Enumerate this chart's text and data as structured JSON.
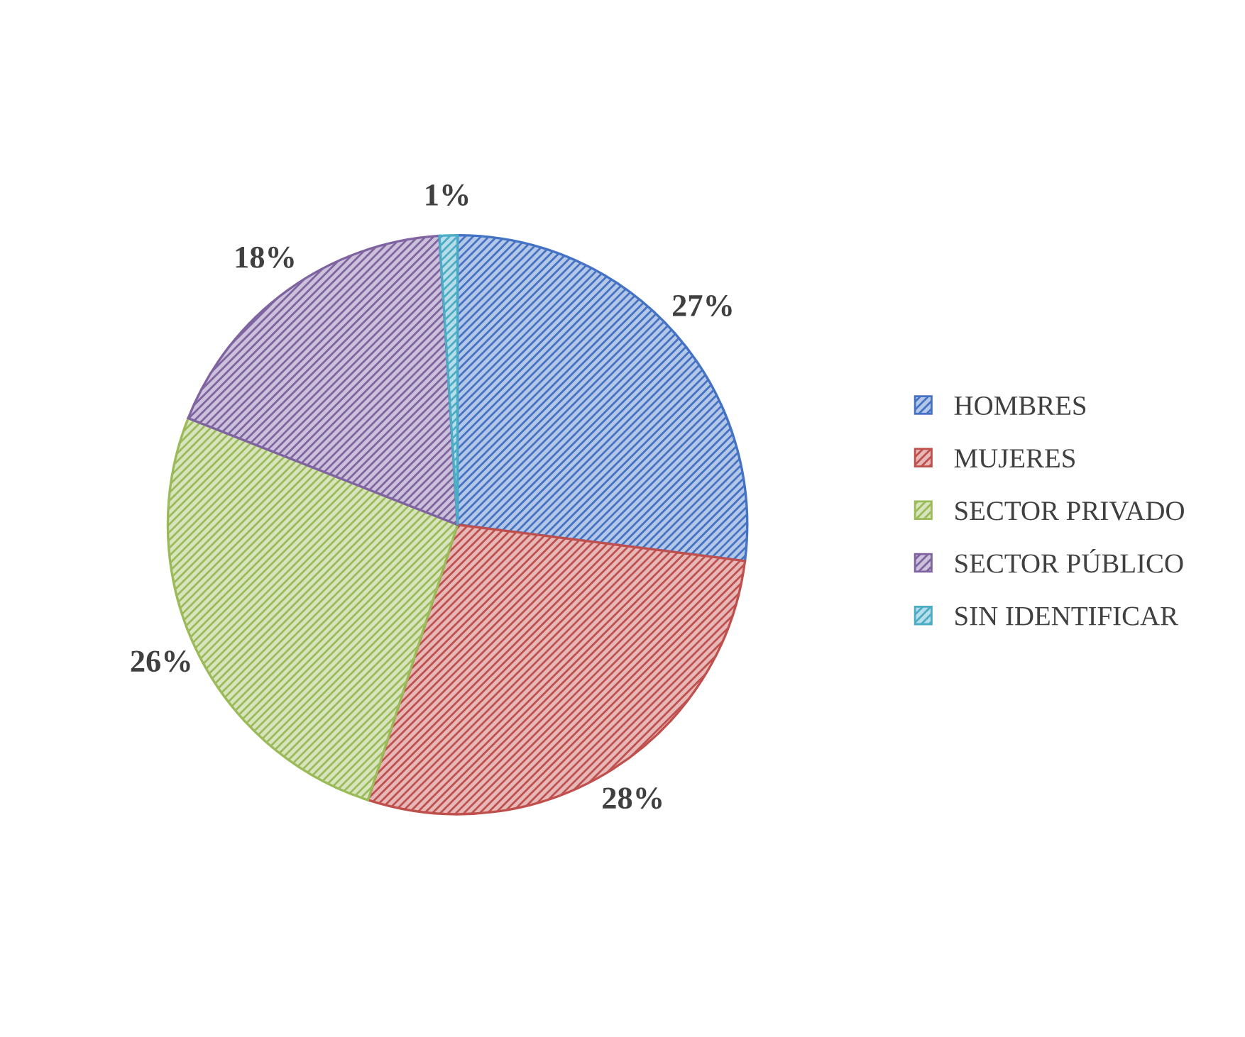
{
  "chart_data": {
    "type": "pie",
    "categories": [
      "HOMBRES",
      "MUJERES",
      "SECTOR PRIVADO",
      "SECTOR PÚBLICO",
      "SIN IDENTIFICAR"
    ],
    "values": [
      27,
      28,
      26,
      18,
      1
    ],
    "colors": [
      "#4472c4",
      "#c0504d",
      "#9bbb59",
      "#8064a2",
      "#4bacc6"
    ],
    "value_labels": [
      "27%",
      "28%",
      "26%",
      "18%",
      "1%"
    ],
    "legend": "right"
  }
}
